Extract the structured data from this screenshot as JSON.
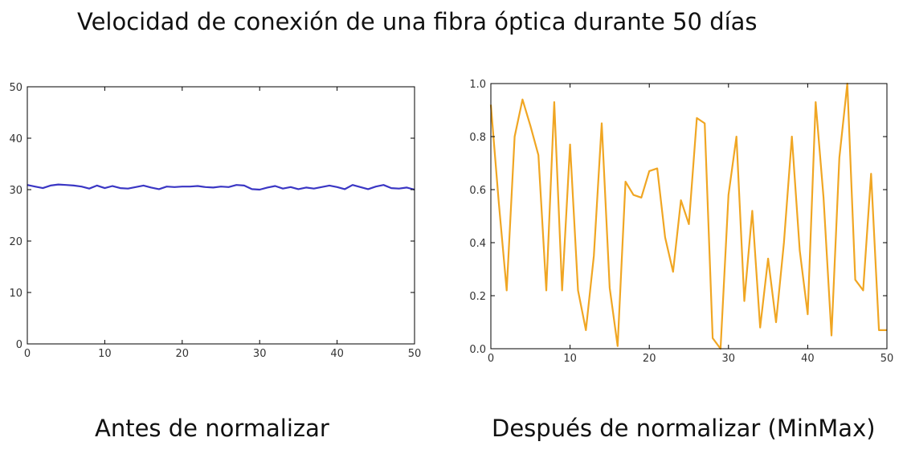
{
  "title": "Velocidad de conexión de una fibra óptica durante 50 días",
  "charts": {
    "before_caption": "Antes de normalizar",
    "after_caption": "Después de normalizar (MinMax)"
  },
  "chart_data": [
    {
      "type": "line",
      "title": "",
      "xlabel": "",
      "ylabel": "",
      "xlim": [
        0,
        50
      ],
      "ylim": [
        0,
        50
      ],
      "xticks": [
        "0",
        "10",
        "20",
        "30",
        "40",
        "50"
      ],
      "yticks": [
        "0",
        "10",
        "20",
        "30",
        "40",
        "50"
      ],
      "grid": false,
      "color": "#3a36c4",
      "x": [
        0,
        1,
        2,
        3,
        4,
        5,
        6,
        7,
        8,
        9,
        10,
        11,
        12,
        13,
        14,
        15,
        16,
        17,
        18,
        19,
        20,
        21,
        22,
        23,
        24,
        25,
        26,
        27,
        28,
        29,
        30,
        31,
        32,
        33,
        34,
        35,
        36,
        37,
        38,
        39,
        40,
        41,
        42,
        43,
        44,
        45,
        46,
        47,
        48,
        49,
        50
      ],
      "values": [
        30.9,
        30.6,
        30.3,
        30.8,
        31.0,
        30.9,
        30.8,
        30.6,
        30.2,
        30.8,
        30.3,
        30.7,
        30.3,
        30.2,
        30.5,
        30.8,
        30.4,
        30.1,
        30.6,
        30.5,
        30.6,
        30.6,
        30.7,
        30.5,
        30.4,
        30.6,
        30.5,
        30.9,
        30.8,
        30.1,
        30.0,
        30.4,
        30.7,
        30.2,
        30.5,
        30.1,
        30.4,
        30.2,
        30.5,
        30.8,
        30.5,
        30.1,
        30.9,
        30.5,
        30.1,
        30.6,
        30.9,
        30.3,
        30.2,
        30.4,
        30.0
      ]
    },
    {
      "type": "line",
      "title": "",
      "xlabel": "",
      "ylabel": "",
      "xlim": [
        0,
        50
      ],
      "ylim": [
        0.0,
        1.0
      ],
      "xticks": [
        "0",
        "10",
        "20",
        "30",
        "40",
        "50"
      ],
      "yticks": [
        "0.0",
        "0.2",
        "0.4",
        "0.6",
        "0.8",
        "1.0"
      ],
      "grid": false,
      "color": "#f0a623",
      "x": [
        0,
        1,
        2,
        3,
        4,
        5,
        6,
        7,
        8,
        9,
        10,
        11,
        12,
        13,
        14,
        15,
        16,
        17,
        18,
        19,
        20,
        21,
        22,
        23,
        24,
        25,
        26,
        27,
        28,
        29,
        30,
        31,
        32,
        33,
        34,
        35,
        36,
        37,
        38,
        39,
        40,
        41,
        42,
        43,
        44,
        45,
        46,
        47,
        48,
        49,
        50
      ],
      "values": [
        0.92,
        0.55,
        0.22,
        0.8,
        0.94,
        0.84,
        0.73,
        0.22,
        0.93,
        0.22,
        0.77,
        0.22,
        0.07,
        0.35,
        0.85,
        0.23,
        0.01,
        0.63,
        0.58,
        0.57,
        0.67,
        0.68,
        0.42,
        0.29,
        0.56,
        0.47,
        0.87,
        0.85,
        0.04,
        0.0,
        0.58,
        0.8,
        0.18,
        0.52,
        0.08,
        0.34,
        0.1,
        0.4,
        0.8,
        0.37,
        0.13,
        0.93,
        0.57,
        0.05,
        0.72,
        1.0,
        0.26,
        0.22,
        0.66,
        0.07,
        0.07
      ]
    }
  ]
}
